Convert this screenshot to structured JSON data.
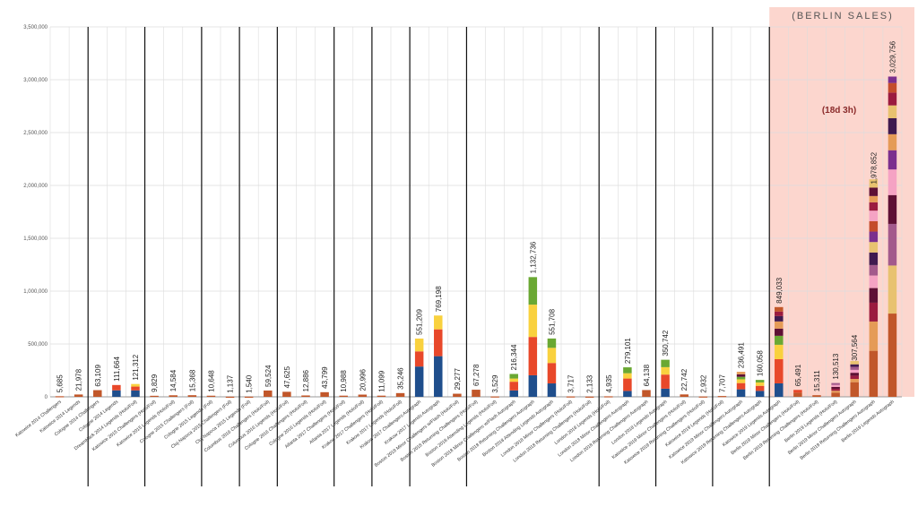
{
  "chart_data": {
    "type": "bar",
    "title": "(BERLIN SALES)",
    "annotation": "(18d 3h)",
    "xlabel": "",
    "ylabel": "",
    "ylim": [
      0,
      3500000
    ],
    "grid": true,
    "legend": "none",
    "y_ticks": [
      "0",
      "500,000",
      "1,000,000",
      "1,500,000",
      "2,000,000",
      "2,500,000",
      "3,000,000",
      "3,500,000"
    ],
    "y_tick_values": [
      0,
      500000,
      1000000,
      1500000,
      2000000,
      2500000,
      3000000,
      3500000
    ],
    "highlight_start_index": 38,
    "group_divider_after_indices": [
      1,
      4,
      7,
      9,
      11,
      14,
      16,
      18,
      21,
      28,
      31,
      34,
      37
    ],
    "categories": [
      "Katowice 2014 Challengers",
      "Katowice 2014 Legends",
      "Cologne 2014 Challengers",
      "Cologne 2014 Legends",
      "DreamHack 2014 Legends (Holo/Foil)",
      "Katowice 2015 Challengers (Holo/Foil)",
      "Katowice 2015 Legends (Holo/Foil)",
      "Cologne 2015 Challengers (Foil)",
      "Cologne 2015 Legends (Foil)",
      "Cluj-Napoca 2015 Challengers (Foil)",
      "Cluj-Napoca 2015 Legends (Foil)",
      "Columbus 2016 Challengers (Holo/Foil)",
      "Columbus 2016 Legends (Holo/Foil)",
      "Cologne 2016 Challengers (Holo/Foil)",
      "Cologne 2016 Legends (Holo/Foil)",
      "Atlanta 2017 Challengers (Holo/Foil)",
      "Atlanta 2017 Legends (Holo/Foil)",
      "Krakow 2017 Challengers (Holo/Foil)",
      "Krakow 2017 Legends (Holo/Foil)",
      "Krakow 2017 Challengers Autograph",
      "Krakow 2017 Legends Autograph",
      "Boston 2018 Minor Challengers w/Flash (Holo/Foil)",
      "Boston 2018 Returning Challengers (Holo/Foil)",
      "Boston 2018 Attending Legends (Holo/Foil)",
      "Boston 2018 Minor Challengers w/Flash Autograph",
      "Boston 2018 Returning Challengers Autograph",
      "Boston 2018 Attending Legends Autograph",
      "London 2018 Minor Challengers (Holo/Foil)",
      "London 2018 Returning Challengers (Holo/Foil)",
      "London 2018 Legends (Holo/Foil)",
      "London 2018 Minor Challengers Autograph",
      "London 2018 Returning Challengers Autograph",
      "London 2018 Legends Autograph",
      "Katowice 2019 Minor Challengers (Holo/Foil)",
      "Katowice 2019 Returning Challengers (Holo/Foil)",
      "Katowice 2019 Legends (Holo/Foil)",
      "Katowice 2019 Minor Challengers Autograph",
      "Katowice 2019 Returning Challengers Autograph",
      "Katowice 2019 Legends Autograph",
      "Berlin 2019 Minor Challengers (Holo/Foil)",
      "Berlin 2019 Returning Challengers (Holo/Foil)",
      "Berlin 2019 Legends (Holo/Foil)",
      "Berlin 2019 Minor Challengers Autograph",
      "Berlin 2019 Returning Challengers Autograph",
      "Berlin 2019 Legends Autograph"
    ],
    "value_labels": [
      "5,685",
      "21,978",
      "63,109",
      "111,664",
      "121,312",
      "9,829",
      "14,584",
      "15,368",
      "10,648",
      "1,137",
      "1,540",
      "59,524",
      "47,625",
      "12,886",
      "43,799",
      "10,988",
      "20,996",
      "11,099",
      "35,246",
      "551,209",
      "769,198",
      "29,277",
      "67,278",
      "3,529",
      "216,344",
      "1,132,736",
      "551,708",
      "3,717",
      "2,133",
      "4,935",
      "279,101",
      "64,138",
      "350,742",
      "22,742",
      "2,932",
      "7,707",
      "236,491",
      "160,058",
      "849,033",
      "65,491",
      "15,311",
      "130,513",
      "307,564",
      "1,978,852",
      "3,029,756"
    ],
    "values": [
      5685,
      21978,
      63109,
      111664,
      121312,
      9829,
      14584,
      15368,
      10648,
      1137,
      1540,
      59524,
      47625,
      12886,
      43799,
      10988,
      20996,
      11099,
      35246,
      551209,
      769198,
      29277,
      67278,
      3529,
      216344,
      1132736,
      551708,
      3717,
      2133,
      4935,
      279101,
      64138,
      350742,
      22742,
      2932,
      7707,
      236491,
      160058,
      849033,
      65491,
      15311,
      130513,
      307564,
      1978852,
      3029756
    ],
    "segment_colors": [
      "#1f4e8c",
      "#e8482a",
      "#f9d13e",
      "#6aa833",
      "#c1572a",
      "#e59b57",
      "#9b1b3f",
      "#5e1035",
      "#f5a3c4",
      "#a35a8c",
      "#e8c270",
      "#7b2f8e",
      "#c44d2c",
      "#3f1a4f"
    ],
    "stacks": [
      {
        "index": 3,
        "fractions": [
          0.55,
          0.45
        ],
        "colors": [
          "#1f4e8c",
          "#e8482a"
        ]
      },
      {
        "index": 4,
        "fractions": [
          0.5,
          0.3,
          0.2
        ],
        "colors": [
          "#1f4e8c",
          "#e8482a",
          "#f9d13e"
        ]
      },
      {
        "index": 19,
        "fractions": [
          0.52,
          0.26,
          0.22
        ],
        "colors": [
          "#1f4e8c",
          "#e8482a",
          "#f9d13e"
        ]
      },
      {
        "index": 20,
        "fractions": [
          0.5,
          0.33,
          0.17
        ],
        "colors": [
          "#1f4e8c",
          "#e8482a",
          "#f9d13e"
        ]
      },
      {
        "index": 24,
        "fractions": [
          0.28,
          0.38,
          0.14,
          0.2
        ],
        "colors": [
          "#1f4e8c",
          "#e8482a",
          "#f9d13e",
          "#6aa833"
        ]
      },
      {
        "index": 25,
        "fractions": [
          0.18,
          0.32,
          0.27,
          0.23
        ],
        "colors": [
          "#1f4e8c",
          "#e8482a",
          "#f9d13e",
          "#6aa833"
        ]
      },
      {
        "index": 26,
        "fractions": [
          0.23,
          0.35,
          0.26,
          0.16
        ],
        "colors": [
          "#1f4e8c",
          "#e8482a",
          "#f9d13e",
          "#6aa833"
        ]
      },
      {
        "index": 30,
        "fractions": [
          0.2,
          0.42,
          0.18,
          0.2
        ],
        "colors": [
          "#1f4e8c",
          "#e8482a",
          "#f9d13e",
          "#6aa833"
        ]
      },
      {
        "index": 32,
        "fractions": [
          0.22,
          0.38,
          0.2,
          0.2
        ],
        "colors": [
          "#1f4e8c",
          "#e8482a",
          "#f9d13e",
          "#6aa833"
        ]
      },
      {
        "index": 36,
        "fractions": [
          0.3,
          0.25,
          0.15,
          0.1,
          0.1,
          0.1
        ],
        "colors": [
          "#1f4e8c",
          "#e8482a",
          "#f9d13e",
          "#6aa833",
          "#5e1035",
          "#e59b57"
        ]
      },
      {
        "index": 37,
        "fractions": [
          0.35,
          0.3,
          0.2,
          0.15
        ],
        "colors": [
          "#1f4e8c",
          "#e8482a",
          "#f9d13e",
          "#6aa833"
        ]
      },
      {
        "index": 38,
        "fractions": [
          0.15,
          0.27,
          0.16,
          0.1,
          0.08,
          0.08,
          0.06,
          0.05,
          0.05
        ],
        "colors": [
          "#1f4e8c",
          "#e8482a",
          "#f9d13e",
          "#6aa833",
          "#5e1035",
          "#e59b57",
          "#3f1a4f",
          "#9b1b3f",
          "#c1572a"
        ]
      },
      {
        "index": 39,
        "fractions": [
          0.6,
          0.4
        ],
        "colors": [
          "#c1572a",
          "#e8482a"
        ]
      },
      {
        "index": 41,
        "fractions": [
          0.3,
          0.14,
          0.14,
          0.14,
          0.14,
          0.14
        ],
        "colors": [
          "#c1572a",
          "#e59b57",
          "#9b1b3f",
          "#5e1035",
          "#f5a3c4",
          "#a35a8c"
        ]
      },
      {
        "index": 42,
        "fractions": [
          0.45,
          0.1,
          0.1,
          0.09,
          0.09,
          0.09,
          0.08,
          0.1
        ],
        "colors": [
          "#c1572a",
          "#e59b57",
          "#9b1b3f",
          "#5e1035",
          "#f5a3c4",
          "#a35a8c",
          "#3f1a4f",
          "#e8c270"
        ]
      },
      {
        "index": 43,
        "fractions": [
          0.22,
          0.14,
          0.09,
          0.07,
          0.06,
          0.05,
          0.06,
          0.05,
          0.05,
          0.05,
          0.05,
          0.04,
          0.03,
          0.04,
          0.04
        ],
        "colors": [
          "#c1572a",
          "#e59b57",
          "#9b1b3f",
          "#5e1035",
          "#f5a3c4",
          "#a35a8c",
          "#3f1a4f",
          "#e8c270",
          "#7b2f8e",
          "#c44d2c",
          "#f5a3c4",
          "#9b1b3f",
          "#e59b57",
          "#5e1035",
          "#e8c270"
        ]
      },
      {
        "index": 44,
        "fractions": [
          0.26,
          0.15,
          0.13,
          0.09,
          0.08,
          0.06,
          0.05,
          0.05,
          0.04,
          0.04,
          0.03,
          0.02
        ],
        "colors": [
          "#c1572a",
          "#e8c270",
          "#a35a8c",
          "#5e1035",
          "#f5a3c4",
          "#7b2f8e",
          "#e59b57",
          "#3f1a4f",
          "#e8c270",
          "#9b1b3f",
          "#c44d2c",
          "#7b2f8e"
        ]
      }
    ],
    "default_bar_color": "#c1572a",
    "colors": {
      "highlight_region": "#fcd6ce",
      "grid": "#dddddd",
      "divider": "#111111",
      "axis": "#999999"
    }
  }
}
